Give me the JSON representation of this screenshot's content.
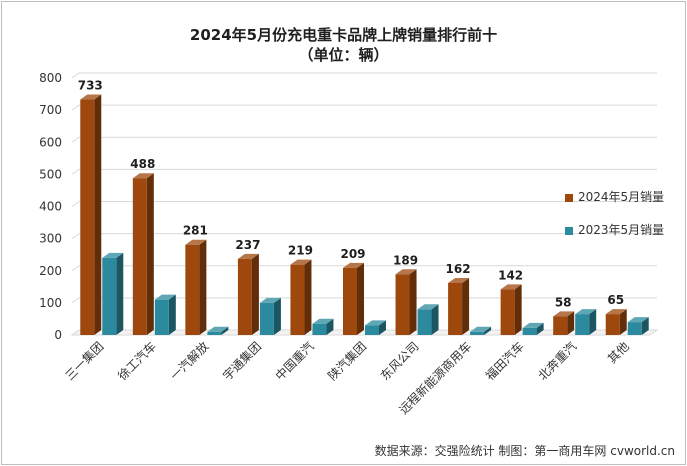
{
  "chart_data": {
    "type": "bar",
    "title": "2024年5月份充电重卡品牌上牌销量排行前十",
    "subtitle": "（单位：辆）",
    "categories": [
      "三一集团",
      "徐工汽车",
      "一汽解放",
      "宇通集团",
      "中国重汽",
      "陕汽集团",
      "东风公司",
      "远程新能源商用车",
      "福田汽车",
      "北奔重汽",
      "其他"
    ],
    "series": [
      {
        "name": "2024年5月销量",
        "color": "#9e480e",
        "values": [
          733,
          488,
          281,
          237,
          219,
          209,
          189,
          162,
          142,
          58,
          65
        ]
      },
      {
        "name": "2023年5月销量",
        "color": "#2b8a9e",
        "values": [
          240,
          110,
          10,
          100,
          35,
          30,
          80,
          10,
          22,
          65,
          40
        ]
      }
    ],
    "ylim": [
      0,
      800
    ],
    "yticks": [
      0,
      100,
      200,
      300,
      400,
      500,
      600,
      700,
      800
    ],
    "grid": true,
    "legend_position": "right",
    "data_labels_series": 0
  },
  "footer": {
    "source": "数据来源：交强险统计  制图：第一商用车网 cvworld.cn"
  }
}
